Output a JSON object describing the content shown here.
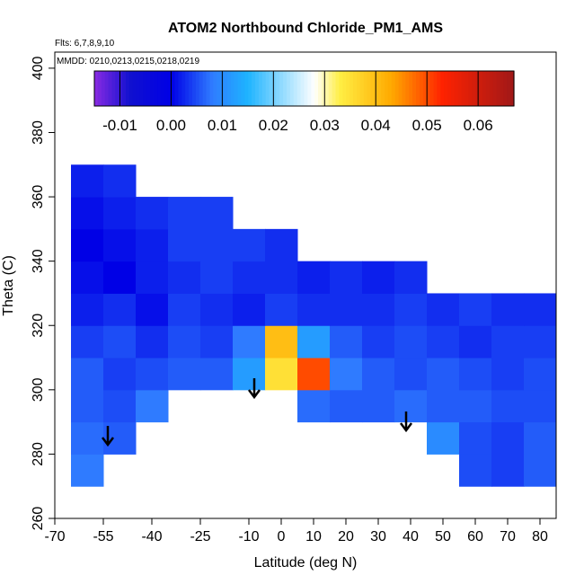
{
  "chart_data": {
    "type": "heatmap",
    "title": "ATOM2 Northbound Chloride_PM1_AMS",
    "subtitle": "Flts: 6,7,8,9,10",
    "annotation": "MMDD: 0210,0213,0215,0218,0219",
    "x_label": "Latitude (deg N)",
    "y_label": "Theta (C)",
    "xlim": [
      -70,
      85
    ],
    "ylim": [
      260,
      405
    ],
    "xticks": [
      -70,
      -55,
      -40,
      -25,
      -10,
      0,
      10,
      20,
      30,
      40,
      50,
      60,
      70,
      80
    ],
    "yticks": [
      260,
      280,
      300,
      320,
      340,
      360,
      380,
      400
    ],
    "x_bins": [
      -65,
      -55,
      -45,
      -35,
      -25,
      -15,
      -5,
      5,
      15,
      25,
      35,
      45,
      55,
      65,
      75,
      85
    ],
    "y_bins": [
      270,
      280,
      290,
      300,
      310,
      320,
      330,
      340,
      350,
      360,
      370
    ],
    "values": [
      [
        0.008,
        null,
        null,
        null,
        null,
        null,
        null,
        null,
        null,
        null,
        null,
        null,
        0.005,
        0.004,
        0.006
      ],
      [
        0.007,
        0.006,
        null,
        null,
        null,
        null,
        null,
        null,
        null,
        null,
        null,
        0.01,
        0.005,
        0.004,
        0.006
      ],
      [
        0.006,
        0.005,
        0.008,
        null,
        null,
        null,
        null,
        0.007,
        0.006,
        0.006,
        0.007,
        0.006,
        0.006,
        0.005,
        0.005
      ],
      [
        0.006,
        0.004,
        0.005,
        0.006,
        0.006,
        0.012,
        0.035,
        0.05,
        0.008,
        0.006,
        0.005,
        0.006,
        0.005,
        0.004,
        0.005
      ],
      [
        0.004,
        0.005,
        0.003,
        0.005,
        0.004,
        0.008,
        0.04,
        0.012,
        0.006,
        0.004,
        0.005,
        0.004,
        0.003,
        0.004,
        0.004
      ],
      [
        0.002,
        0.003,
        0.001,
        0.004,
        0.003,
        0.002,
        0.004,
        0.003,
        0.003,
        0.003,
        0.004,
        0.003,
        0.004,
        0.003,
        0.003
      ],
      [
        0.001,
        0.0,
        0.002,
        0.003,
        0.004,
        0.003,
        0.003,
        0.002,
        0.003,
        0.002,
        0.003,
        null,
        null,
        null,
        null
      ],
      [
        0.0,
        0.001,
        0.002,
        0.004,
        0.004,
        0.004,
        0.003,
        null,
        null,
        null,
        null,
        null,
        null,
        null,
        null
      ],
      [
        0.001,
        0.002,
        0.003,
        0.004,
        0.004,
        null,
        null,
        null,
        null,
        null,
        null,
        null,
        null,
        null,
        null
      ],
      [
        0.002,
        0.003,
        null,
        null,
        null,
        null,
        null,
        null,
        null,
        null,
        null,
        null,
        null,
        null,
        null
      ]
    ],
    "clim": [
      -0.015,
      0.067
    ],
    "cticks": [
      -0.01,
      {
        "value": 0,
        "label": "0.00"
      },
      0.01,
      0.02,
      0.03,
      0.04,
      0.05,
      0.06
    ],
    "colorscale": [
      [
        -0.015,
        "#8a2be2"
      ],
      [
        -0.008,
        "#1010d0"
      ],
      [
        0,
        "#0000e6"
      ],
      [
        0.008,
        "#2f7bff"
      ],
      [
        0.015,
        "#1eb4ff"
      ],
      [
        0.028,
        "#ffffff"
      ],
      [
        0.033,
        "#ffee44"
      ],
      [
        0.043,
        "#ffaa00"
      ],
      [
        0.053,
        "#ff2200"
      ],
      [
        0.067,
        "#a01818"
      ]
    ]
  }
}
